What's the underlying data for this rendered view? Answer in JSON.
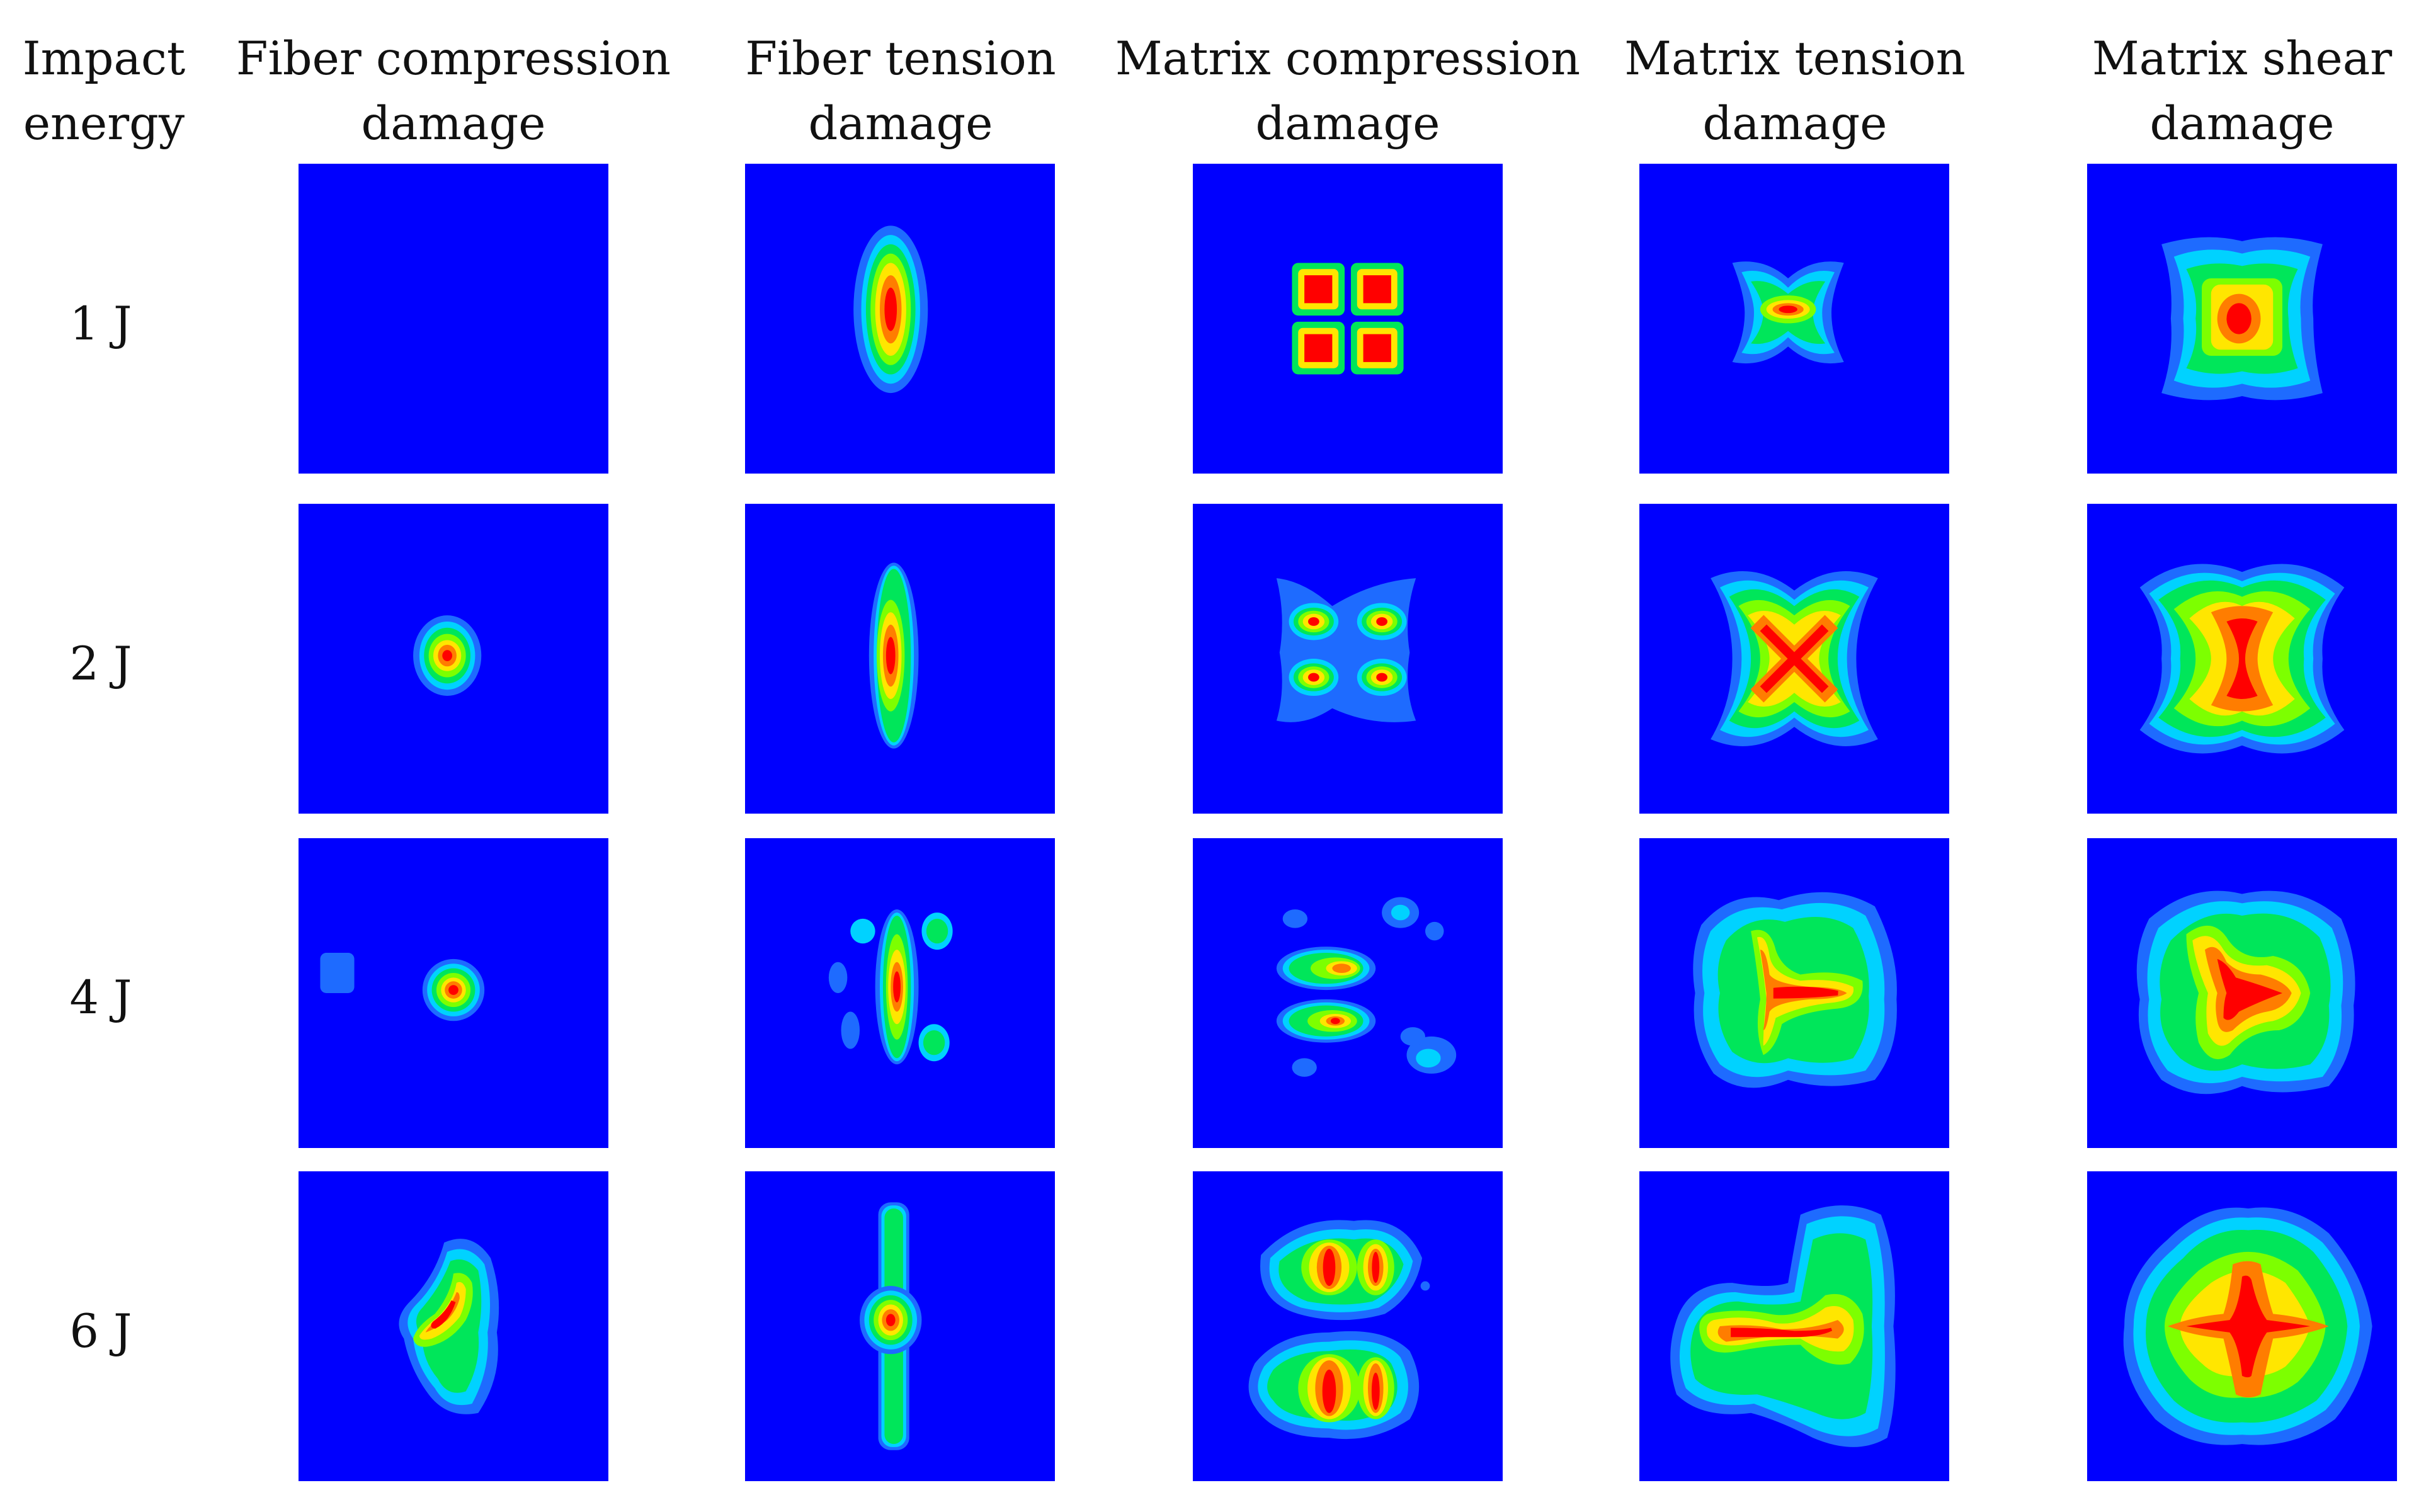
{
  "row_header": [
    "Impact",
    "energy"
  ],
  "columns": [
    {
      "line1": "Fiber compression",
      "line2": "damage"
    },
    {
      "line1": "Fiber tension",
      "line2": "damage"
    },
    {
      "line1": "Matrix compression",
      "line2": "damage"
    },
    {
      "line1": "Matrix tension",
      "line2": "damage"
    },
    {
      "line1": "Matrix shear",
      "line2": "damage"
    }
  ],
  "rows": [
    {
      "label": "1 J"
    },
    {
      "label": "2 J"
    },
    {
      "label": "4 J"
    },
    {
      "label": "6 J"
    }
  ],
  "colors": {
    "background": "#0000fe",
    "levels": [
      "#1e6bff",
      "#00d2ff",
      "#00e65a",
      "#7dff00",
      "#ffe600",
      "#ff7d00",
      "#ff0000"
    ]
  }
}
